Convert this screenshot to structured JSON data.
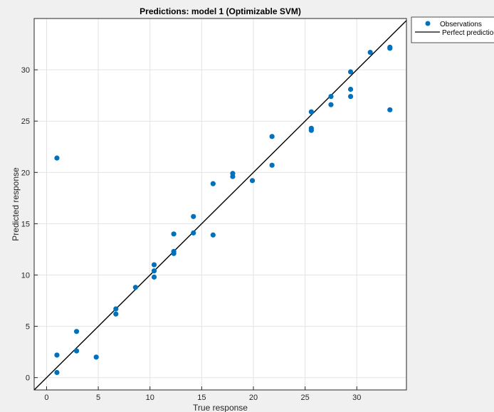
{
  "chart_data": {
    "type": "scatter",
    "title": "Predictions: model 1 (Optimizable SVM)",
    "xlabel": "True response",
    "ylabel": "Predicted response",
    "xlim": [
      -1.2,
      34.8
    ],
    "ylim": [
      -1.2,
      35
    ],
    "xticks": [
      0,
      5,
      10,
      15,
      20,
      25,
      30
    ],
    "yticks": [
      0,
      5,
      10,
      15,
      20,
      25,
      30
    ],
    "grid": true,
    "legend": {
      "placement": "top-right, outside",
      "entries": [
        "Observations",
        "Perfect prediction"
      ]
    },
    "series": [
      {
        "name": "Observations",
        "style": "markers",
        "color": "#0072BD",
        "points": [
          [
            1.0,
            21.4
          ],
          [
            1.0,
            2.2
          ],
          [
            1.0,
            0.5
          ],
          [
            2.9,
            4.5
          ],
          [
            2.9,
            2.6
          ],
          [
            4.8,
            2.0
          ],
          [
            6.7,
            6.7
          ],
          [
            6.7,
            6.2
          ],
          [
            8.6,
            8.8
          ],
          [
            10.4,
            11.0
          ],
          [
            10.4,
            10.4
          ],
          [
            10.4,
            9.8
          ],
          [
            12.3,
            14.0
          ],
          [
            12.3,
            12.3
          ],
          [
            12.3,
            12.1
          ],
          [
            14.2,
            15.7
          ],
          [
            14.2,
            14.1
          ],
          [
            16.1,
            18.9
          ],
          [
            16.1,
            13.9
          ],
          [
            18.0,
            19.9
          ],
          [
            18.0,
            19.6
          ],
          [
            19.9,
            19.2
          ],
          [
            21.8,
            23.5
          ],
          [
            21.8,
            20.7
          ],
          [
            25.6,
            25.9
          ],
          [
            25.6,
            24.3
          ],
          [
            25.6,
            24.1
          ],
          [
            27.5,
            27.4
          ],
          [
            27.5,
            26.6
          ],
          [
            29.4,
            29.8
          ],
          [
            29.4,
            28.1
          ],
          [
            29.4,
            27.4
          ],
          [
            31.3,
            31.7
          ],
          [
            33.2,
            32.2
          ],
          [
            33.2,
            32.1
          ],
          [
            33.2,
            26.1
          ]
        ]
      },
      {
        "name": "Perfect prediction",
        "style": "line",
        "color": "#000000",
        "points": [
          [
            -1.2,
            -1.2
          ],
          [
            34.8,
            34.8
          ]
        ]
      }
    ]
  }
}
